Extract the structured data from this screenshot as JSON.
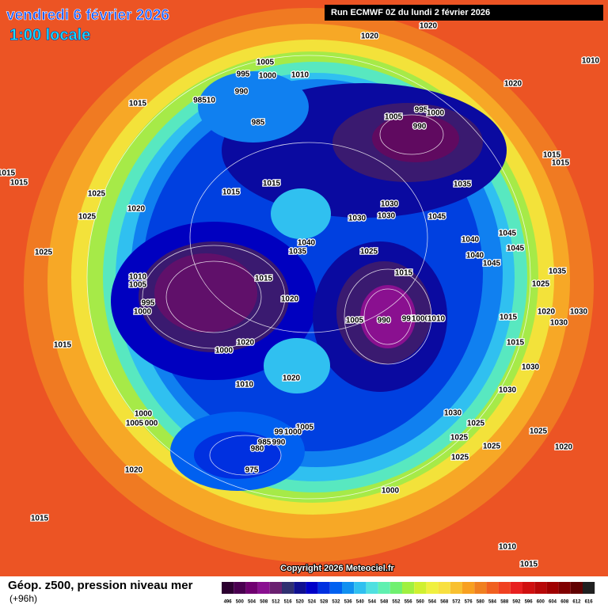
{
  "header": {
    "date": "vendredi 6 février 2026",
    "time": "1:00 locale",
    "run": "Run ECMWF 0Z du lundi 2 février 2026"
  },
  "copyright": "Copyright 2026 Meteociel.fr",
  "footer": {
    "label": "Géop. z500, pression niveau mer",
    "lead": "(+96h)"
  },
  "legend": {
    "values": [
      496,
      500,
      504,
      508,
      512,
      516,
      520,
      524,
      528,
      532,
      536,
      540,
      544,
      548,
      552,
      556,
      560,
      564,
      568,
      572,
      576,
      580,
      584,
      588,
      592,
      596,
      600,
      604,
      608,
      612,
      616
    ],
    "colors": [
      "#2c0030",
      "#4a0050",
      "#700070",
      "#8a1090",
      "#6a2070",
      "#303070",
      "#101090",
      "#0000c8",
      "#0030e0",
      "#0060f0",
      "#1090f0",
      "#30c0f0",
      "#50e0e0",
      "#60f0b0",
      "#70f070",
      "#a0f040",
      "#d0f030",
      "#f0f040",
      "#f8e040",
      "#f8c030",
      "#f8a020",
      "#f08020",
      "#f06020",
      "#f04020",
      "#e82020",
      "#d01010",
      "#b80808",
      "#a00000",
      "#800000",
      "#600000",
      "#202020"
    ]
  },
  "isobar_labels": [
    "1020",
    "1020",
    "1010",
    "1005",
    "995",
    "1000",
    "1010",
    "990",
    "98510",
    "1015",
    "985",
    "1020",
    "995",
    "1005",
    "1000",
    "990",
    "1015",
    "1015",
    "1015",
    "1015",
    "1025",
    "1015",
    "1015",
    "1035",
    "1020",
    "1025",
    "1030",
    "1030",
    "1030",
    "1045",
    "1040",
    "1035",
    "1025",
    "1040",
    "1045",
    "1045",
    "1040",
    "1045",
    "1025",
    "1010",
    "1005",
    "1015",
    "1015",
    "1020",
    "995",
    "1000",
    "1005",
    "990",
    "995",
    "1000",
    "1010",
    "1035",
    "1025",
    "1020",
    "1030",
    "1015",
    "1030",
    "1015",
    "1020",
    "1000",
    "1015",
    "1020",
    "1010",
    "1030",
    "1030",
    "1000",
    "1005",
    "000",
    "1030",
    "1025",
    "1005",
    "99",
    "1000",
    "1025",
    "1025",
    "1025",
    "1020",
    "985",
    "990",
    "980",
    "1025",
    "975",
    "1020",
    "1000",
    "1015",
    "1010",
    "1015"
  ]
}
